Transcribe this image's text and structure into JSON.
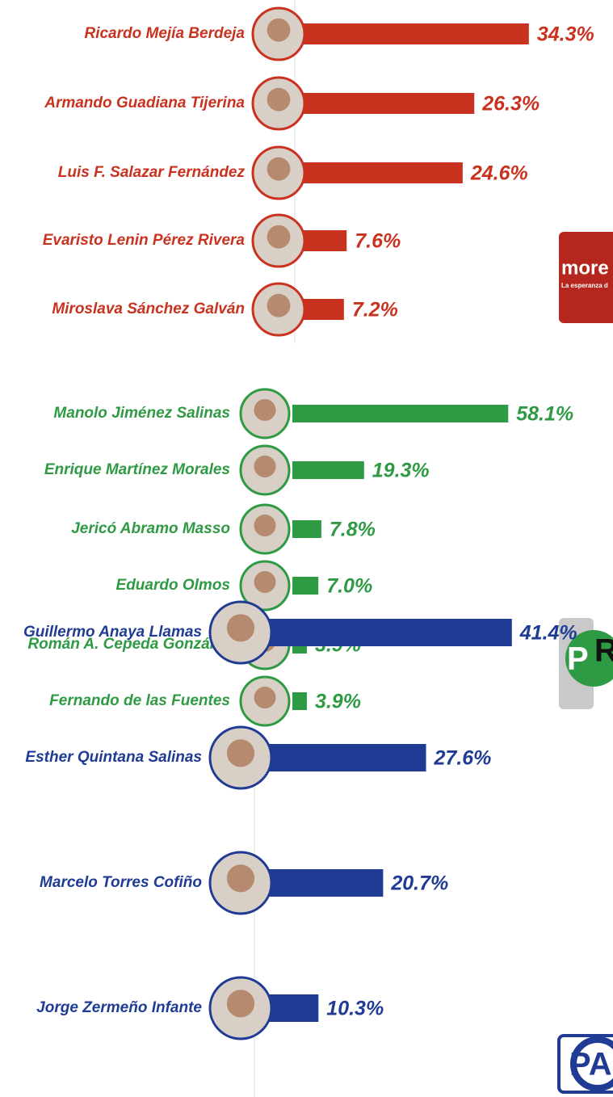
{
  "chart_data": [
    {
      "type": "bar",
      "color": "#c9321f",
      "logo": [
        "more",
        "La esperanza d"
      ],
      "categories": [
        "Ricardo Mejía Berdeja",
        "Armando Guadiana Tijerina",
        "Luis F. Salazar Fernández",
        "Evaristo Lenin Pérez Rivera",
        "Miroslava Sánchez Galván"
      ],
      "values": [
        34.3,
        26.3,
        24.6,
        7.6,
        7.2
      ],
      "value_labels": [
        "34.3%",
        "26.3%",
        "24.6%",
        "7.6%",
        "7.2%"
      ]
    },
    {
      "type": "bar",
      "color": "#2e9a43",
      "logo": [
        "P",
        "R"
      ],
      "categories": [
        "Manolo Jiménez Salinas",
        "Enrique Martínez Morales",
        "Jericó Abramo Masso",
        "Eduardo Olmos",
        "Román A. Cepeda González",
        "Fernando de las Fuentes"
      ],
      "values": [
        58.1,
        19.3,
        7.8,
        7.0,
        3.9,
        3.9
      ],
      "value_labels": [
        "58.1%",
        "19.3%",
        "7.8%",
        "7.0%",
        "3.9%",
        "3.9%"
      ]
    },
    {
      "type": "bar",
      "color": "#1f3b94",
      "logo": [
        "PA"
      ],
      "categories": [
        "Guillermo Anaya Llamas",
        "Esther Quintana Salinas",
        "Marcelo Torres Cofiño",
        "Jorge Zermeño Infante"
      ],
      "values": [
        41.4,
        27.6,
        20.7,
        10.3
      ],
      "value_labels": [
        "41.4%",
        "27.6%",
        "20.7%",
        "10.3%"
      ]
    }
  ]
}
